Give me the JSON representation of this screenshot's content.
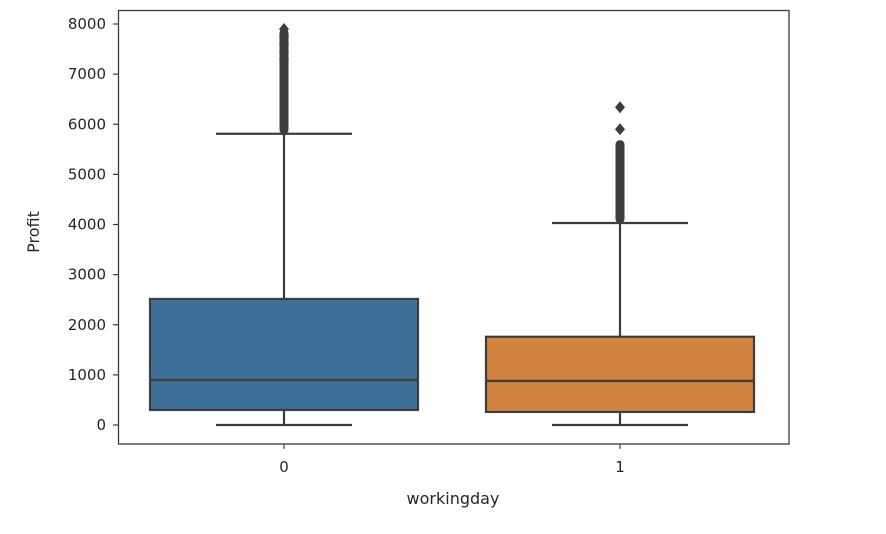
{
  "chart_data": {
    "type": "box",
    "title": "",
    "xlabel": "workingday",
    "ylabel": "Profit",
    "ylim": [
      -380,
      8280
    ],
    "yticks": [
      0,
      1000,
      2000,
      3000,
      4000,
      5000,
      6000,
      7000,
      8000
    ],
    "categories": [
      "0",
      "1"
    ],
    "grid": false,
    "legend": null,
    "series": [
      {
        "name": "0",
        "color": "#3f7098",
        "whisker_low": 0,
        "q1": 300,
        "median": 900,
        "q3": 2515,
        "whisker_high": 5810,
        "outliers_range": [
          5810,
          7900
        ],
        "outliers_sparse": [
          7300,
          7450,
          7600,
          7750,
          7900
        ]
      },
      {
        "name": "1",
        "color": "#d1843f",
        "whisker_low": 0,
        "q1": 260,
        "median": 880,
        "q3": 1760,
        "whisker_high": 4030,
        "outliers_range": [
          4030,
          5680
        ],
        "outliers_sparse": [
          5900,
          6340
        ]
      }
    ]
  },
  "axes": {
    "x_label": "workingday",
    "y_label": "Profit",
    "x_tick_labels": [
      "0",
      "1"
    ],
    "y_tick_labels": [
      "0",
      "1000",
      "2000",
      "3000",
      "4000",
      "5000",
      "6000",
      "7000",
      "8000"
    ]
  }
}
